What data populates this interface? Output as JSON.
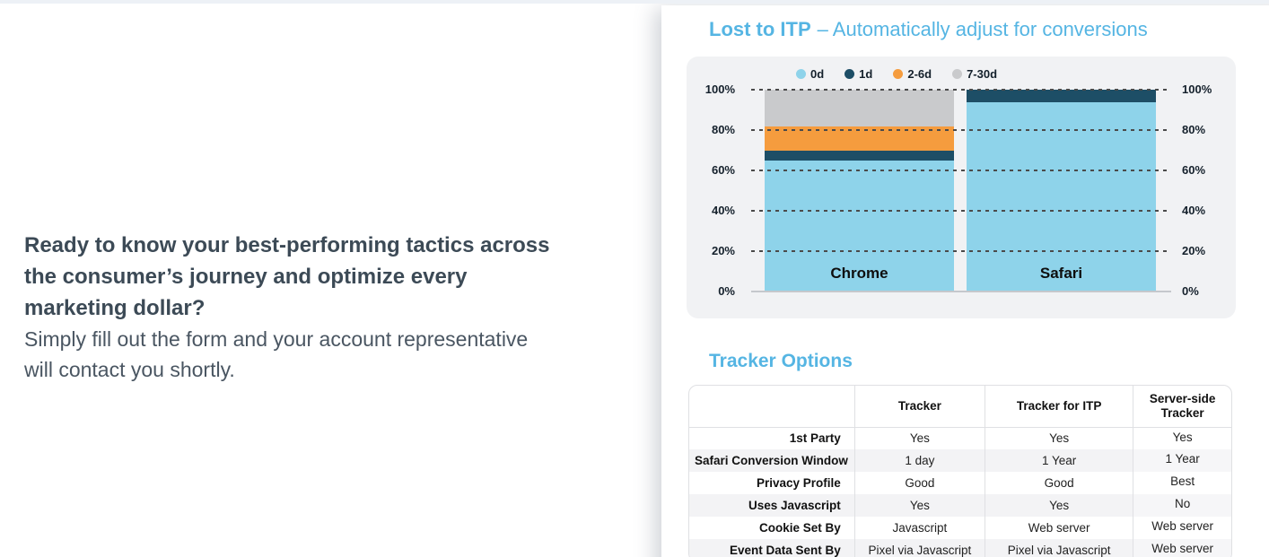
{
  "left_panel": {
    "headline": "Ready to know your best-performing tactics across\nthe consumer’s journey and optimize every\nmarketing dollar?",
    "subtext": "Simply fill out the form and your account representative\nwill contact you shortly."
  },
  "right_panel": {
    "title_bold": "Lost to ITP",
    "title_rest": "– Automatically adjust for conversions",
    "tracker_heading": "Tracker Options"
  },
  "chart_data": {
    "type": "bar",
    "stacked": true,
    "title": "Lost to ITP – Automatically adjust for conversions",
    "categories": [
      "Chrome",
      "Safari"
    ],
    "series": [
      {
        "name": "0d",
        "color": "#8ed3ea",
        "values": [
          65,
          94
        ]
      },
      {
        "name": "1d",
        "color": "#1d4e66",
        "values": [
          5,
          6
        ]
      },
      {
        "name": "2-6d",
        "color": "#f59c3e",
        "values": [
          12,
          0
        ]
      },
      {
        "name": "7-30d",
        "color": "#c9cacc",
        "values": [
          18,
          0
        ]
      }
    ],
    "y_ticks": [
      0,
      20,
      40,
      60,
      80,
      100
    ],
    "y_tick_labels": [
      "0%",
      "20%",
      "40%",
      "60%",
      "80%",
      "100%"
    ],
    "ylim": [
      0,
      100
    ],
    "legend_position": "top",
    "axis_labels_sides": "both",
    "grid": "horizontal-dashed"
  },
  "table": {
    "columns": [
      "",
      "Tracker",
      "Tracker for ITP",
      "Server-side Tracker"
    ],
    "rows": [
      {
        "label": "1st Party",
        "values": [
          "Yes",
          "Yes",
          "Yes"
        ]
      },
      {
        "label": "Safari Conversion Window",
        "values": [
          "1 day",
          "1 Year",
          "1 Year"
        ]
      },
      {
        "label": "Privacy Profile",
        "values": [
          "Good",
          "Good",
          "Best"
        ]
      },
      {
        "label": "Uses Javascript",
        "values": [
          "Yes",
          "Yes",
          "No"
        ]
      },
      {
        "label": "Cookie Set By",
        "values": [
          "Javascript",
          "Web server",
          "Web server"
        ]
      },
      {
        "label": "Event Data Sent By",
        "values": [
          "Pixel via Javascript",
          "Pixel via Javascript",
          "Web server"
        ]
      }
    ]
  },
  "colors": {
    "accent_blue": "#55b5e3",
    "headline_text": "#3c4a56",
    "body_text": "#4a5662",
    "chart_panel_bg": "#f1f2f4",
    "gridline_dash": "#4a4a4a",
    "zebra_row": "#f3f3f5",
    "table_border": "#dfe0e3",
    "top_strip": "#edf1f6"
  }
}
